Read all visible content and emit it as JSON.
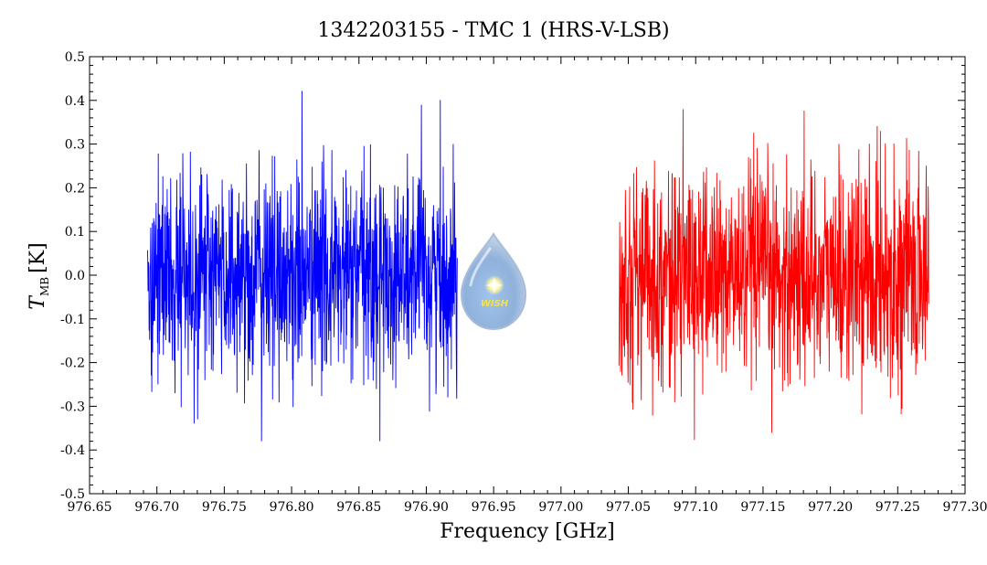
{
  "chart_data": {
    "type": "line",
    "title": "1342203155 - TMC 1 (HRS-V-LSB)",
    "xlabel": "Frequency [GHz]",
    "ylabel_main": "T",
    "ylabel_sub": "MB",
    "ylabel_unit": "[K]",
    "xlim": [
      976.65,
      977.3
    ],
    "ylim": [
      -0.5,
      0.5
    ],
    "x_ticks": [
      "976.65",
      "976.70",
      "976.75",
      "976.80",
      "976.85",
      "976.90",
      "976.95",
      "977.00",
      "977.05",
      "977.10",
      "977.15",
      "977.20",
      "977.25",
      "977.30"
    ],
    "y_ticks": [
      "-0.5",
      "-0.4",
      "-0.3",
      "-0.2",
      "-0.1",
      "0.0",
      "0.1",
      "0.2",
      "0.3",
      "0.4",
      "0.5"
    ],
    "series": [
      {
        "color": "#0000ff",
        "x_range": [
          976.693,
          976.923
        ],
        "noise_rms": 0.12,
        "peak_max": 0.43,
        "peak_min": -0.38
      },
      {
        "color": "#ff0000",
        "x_range": [
          977.043,
          977.273
        ],
        "noise_rms": 0.12,
        "peak_max": 0.38,
        "peak_min": -0.38
      }
    ]
  },
  "logo": {
    "text": "WISH"
  }
}
